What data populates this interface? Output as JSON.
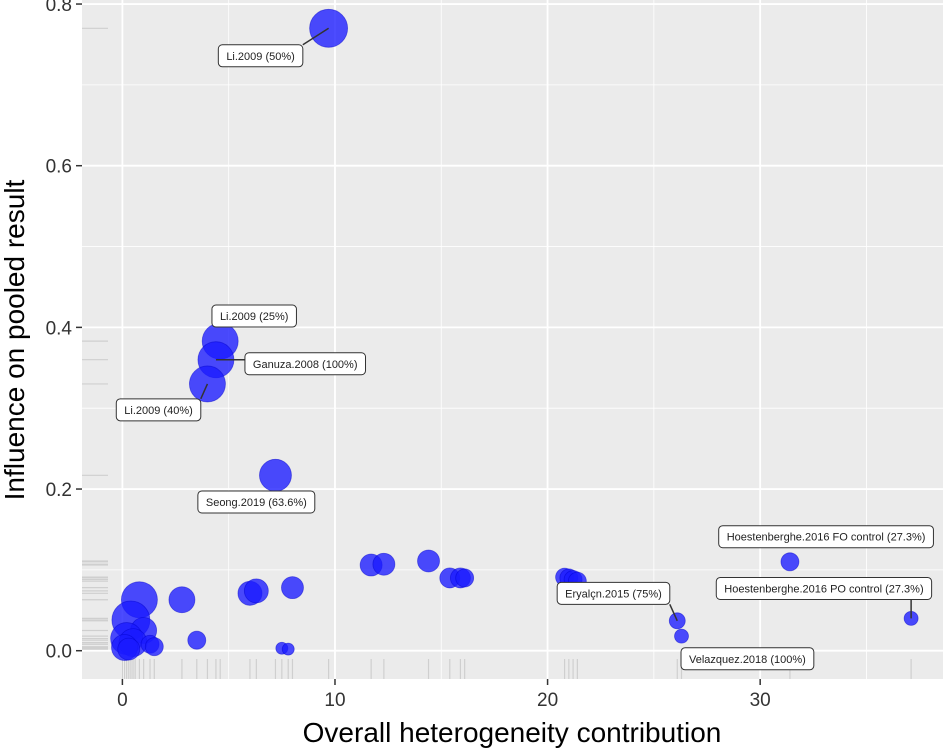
{
  "chart_data": {
    "type": "scatter",
    "title": "",
    "xlabel": "Overall heterogeneity contribution",
    "ylabel": "Influence on pooled result",
    "xlim": [
      -1.9,
      38.6
    ],
    "ylim": [
      -0.035,
      0.805
    ],
    "xticks": [
      0,
      10,
      20,
      30
    ],
    "yticks": [
      0.0,
      0.2,
      0.4,
      0.6,
      0.8
    ],
    "xtick_labels": [
      "0",
      "10",
      "20",
      "30"
    ],
    "ytick_labels": [
      "0.0",
      "0.2",
      "0.4",
      "0.6",
      "0.8"
    ],
    "point_color": "#1a1aff",
    "points": [
      {
        "x": 9.7,
        "y": 0.77,
        "size": 19
      },
      {
        "x": 4.6,
        "y": 0.383,
        "size": 18
      },
      {
        "x": 4.4,
        "y": 0.36,
        "size": 18
      },
      {
        "x": 4.0,
        "y": 0.33,
        "size": 18
      },
      {
        "x": 7.2,
        "y": 0.217,
        "size": 16
      },
      {
        "x": 0.8,
        "y": 0.063,
        "size": 18
      },
      {
        "x": 2.8,
        "y": 0.063,
        "size": 13
      },
      {
        "x": 6.0,
        "y": 0.071,
        "size": 12
      },
      {
        "x": 6.3,
        "y": 0.074,
        "size": 12
      },
      {
        "x": 8.0,
        "y": 0.078,
        "size": 11
      },
      {
        "x": 3.5,
        "y": 0.013,
        "size": 9
      },
      {
        "x": 0.4,
        "y": 0.038,
        "size": 19
      },
      {
        "x": 1.0,
        "y": 0.025,
        "size": 13
      },
      {
        "x": 0.2,
        "y": 0.015,
        "size": 16
      },
      {
        "x": 0.5,
        "y": 0.01,
        "size": 14
      },
      {
        "x": 0.1,
        "y": 0.004,
        "size": 13
      },
      {
        "x": 1.3,
        "y": 0.008,
        "size": 9
      },
      {
        "x": 1.5,
        "y": 0.005,
        "size": 9
      },
      {
        "x": 0.3,
        "y": 0.002,
        "size": 11
      },
      {
        "x": 7.5,
        "y": 0.003,
        "size": 6
      },
      {
        "x": 7.8,
        "y": 0.002,
        "size": 6
      },
      {
        "x": 11.7,
        "y": 0.106,
        "size": 11
      },
      {
        "x": 12.3,
        "y": 0.107,
        "size": 11
      },
      {
        "x": 14.4,
        "y": 0.111,
        "size": 11
      },
      {
        "x": 15.4,
        "y": 0.09,
        "size": 10
      },
      {
        "x": 15.9,
        "y": 0.09,
        "size": 10
      },
      {
        "x": 16.1,
        "y": 0.09,
        "size": 9
      },
      {
        "x": 20.8,
        "y": 0.091,
        "size": 9
      },
      {
        "x": 21.0,
        "y": 0.09,
        "size": 9
      },
      {
        "x": 21.2,
        "y": 0.088,
        "size": 9
      },
      {
        "x": 21.4,
        "y": 0.086,
        "size": 9
      },
      {
        "x": 26.1,
        "y": 0.037,
        "size": 8
      },
      {
        "x": 26.3,
        "y": 0.018,
        "size": 7
      },
      {
        "x": 31.4,
        "y": 0.11,
        "size": 9
      },
      {
        "x": 37.1,
        "y": 0.04,
        "size": 7
      }
    ],
    "labels": [
      {
        "text": "Li.2009 (50%)",
        "x": 9.7,
        "y": 0.77,
        "lx": 6.5,
        "ly": 0.736
      },
      {
        "text": "Li.2009 (25%)",
        "x": 4.6,
        "y": 0.383,
        "lx": 6.2,
        "ly": 0.414
      },
      {
        "text": "Ganuza.2008 (100%)",
        "x": 4.4,
        "y": 0.36,
        "lx": 8.6,
        "ly": 0.355
      },
      {
        "text": "Li.2009 (40%)",
        "x": 4.0,
        "y": 0.33,
        "lx": 1.7,
        "ly": 0.298
      },
      {
        "text": "Seong.2019 (63.6%)",
        "x": 7.2,
        "y": 0.217,
        "lx": 6.3,
        "ly": 0.184
      },
      {
        "text": "Hoestenberghe.2016 FO control (27.3%)",
        "x": 31.4,
        "y": 0.11,
        "lx": 33.1,
        "ly": 0.141
      },
      {
        "text": "Eryalçn.2015 (75%)",
        "x": 26.1,
        "y": 0.037,
        "lx": 23.1,
        "ly": 0.071
      },
      {
        "text": "Hoestenberghe.2016 PO control (27.3%)",
        "x": 37.1,
        "y": 0.04,
        "lx": 33.0,
        "ly": 0.077
      },
      {
        "text": "Velazquez.2018 (100%)",
        "x": 26.3,
        "y": 0.018,
        "lx": 29.4,
        "ly": -0.01
      }
    ],
    "rug_x": [
      0.0,
      0.1,
      0.2,
      0.3,
      0.4,
      0.5,
      0.6,
      0.8,
      1.0,
      1.3,
      1.5,
      2.8,
      3.5,
      4.0,
      4.4,
      4.6,
      6.0,
      6.3,
      7.2,
      7.5,
      7.8,
      8.0,
      9.7,
      11.7,
      12.3,
      14.4,
      15.4,
      15.9,
      16.1,
      20.8,
      21.0,
      21.2,
      21.4,
      26.1,
      26.3,
      31.4,
      37.1
    ],
    "rug_y": [
      0.77,
      0.383,
      0.36,
      0.33,
      0.217,
      0.111,
      0.11,
      0.107,
      0.106,
      0.091,
      0.09,
      0.088,
      0.086,
      0.078,
      0.074,
      0.071,
      0.063,
      0.04,
      0.038,
      0.037,
      0.025,
      0.018,
      0.015,
      0.013,
      0.01,
      0.008,
      0.005,
      0.004,
      0.003,
      0.002
    ]
  }
}
